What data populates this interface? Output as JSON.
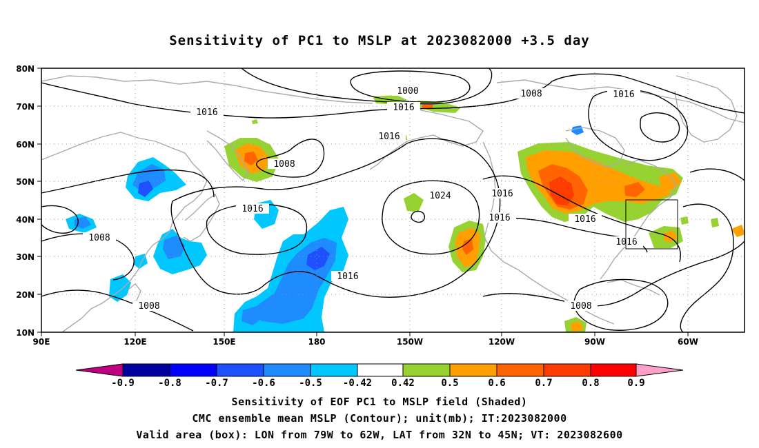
{
  "title": "Sensitivity of PC1 to MSLP at 2023082000 +3.5 day",
  "map": {
    "lat_labels": [
      "80N",
      "70N",
      "60N",
      "50N",
      "40N",
      "30N",
      "20N",
      "10N"
    ],
    "lon_labels": [
      "90E",
      "120E",
      "150E",
      "180",
      "150W",
      "120W",
      "90W",
      "60W"
    ],
    "grid": "dotted",
    "colors": {
      "coastline": "#aaaaaa",
      "contour": "#000000",
      "grid": "#999999"
    },
    "contour_labels": [
      "1000",
      "1016",
      "1016",
      "1008",
      "1016",
      "1008",
      "1016",
      "1016",
      "1024",
      "1016",
      "1016",
      "1016",
      "1016",
      "1008",
      "1016",
      "1008",
      "1008"
    ],
    "valid_box": {
      "lon_range": [
        "79W",
        "62W"
      ],
      "lat_range": [
        "32N",
        "45N"
      ]
    }
  },
  "colorbar": {
    "labels": [
      "-0.9",
      "-0.8",
      "-0.7",
      "-0.6",
      "-0.5",
      "-0.42",
      "0.42",
      "0.5",
      "0.6",
      "0.7",
      "0.8",
      "0.9"
    ],
    "colors": [
      "#c00080",
      "#0000a0",
      "#0000ff",
      "#1e50ff",
      "#1e8cff",
      "#00c8ff",
      "#ffffff",
      "#96d232",
      "#ffa000",
      "#ff6400",
      "#ff3c00",
      "#ff0000",
      "#ffa0c8"
    ]
  },
  "caption": {
    "line1": "Sensitivity of EOF PC1 to MSLP field (Shaded)",
    "line2": "CMC ensemble mean MSLP (Contour); unit(mb); IT:2023082000",
    "line3": "Valid area (box): LON from 79W to 62W, LAT from 32N to 45N; VT: 2023082600"
  }
}
